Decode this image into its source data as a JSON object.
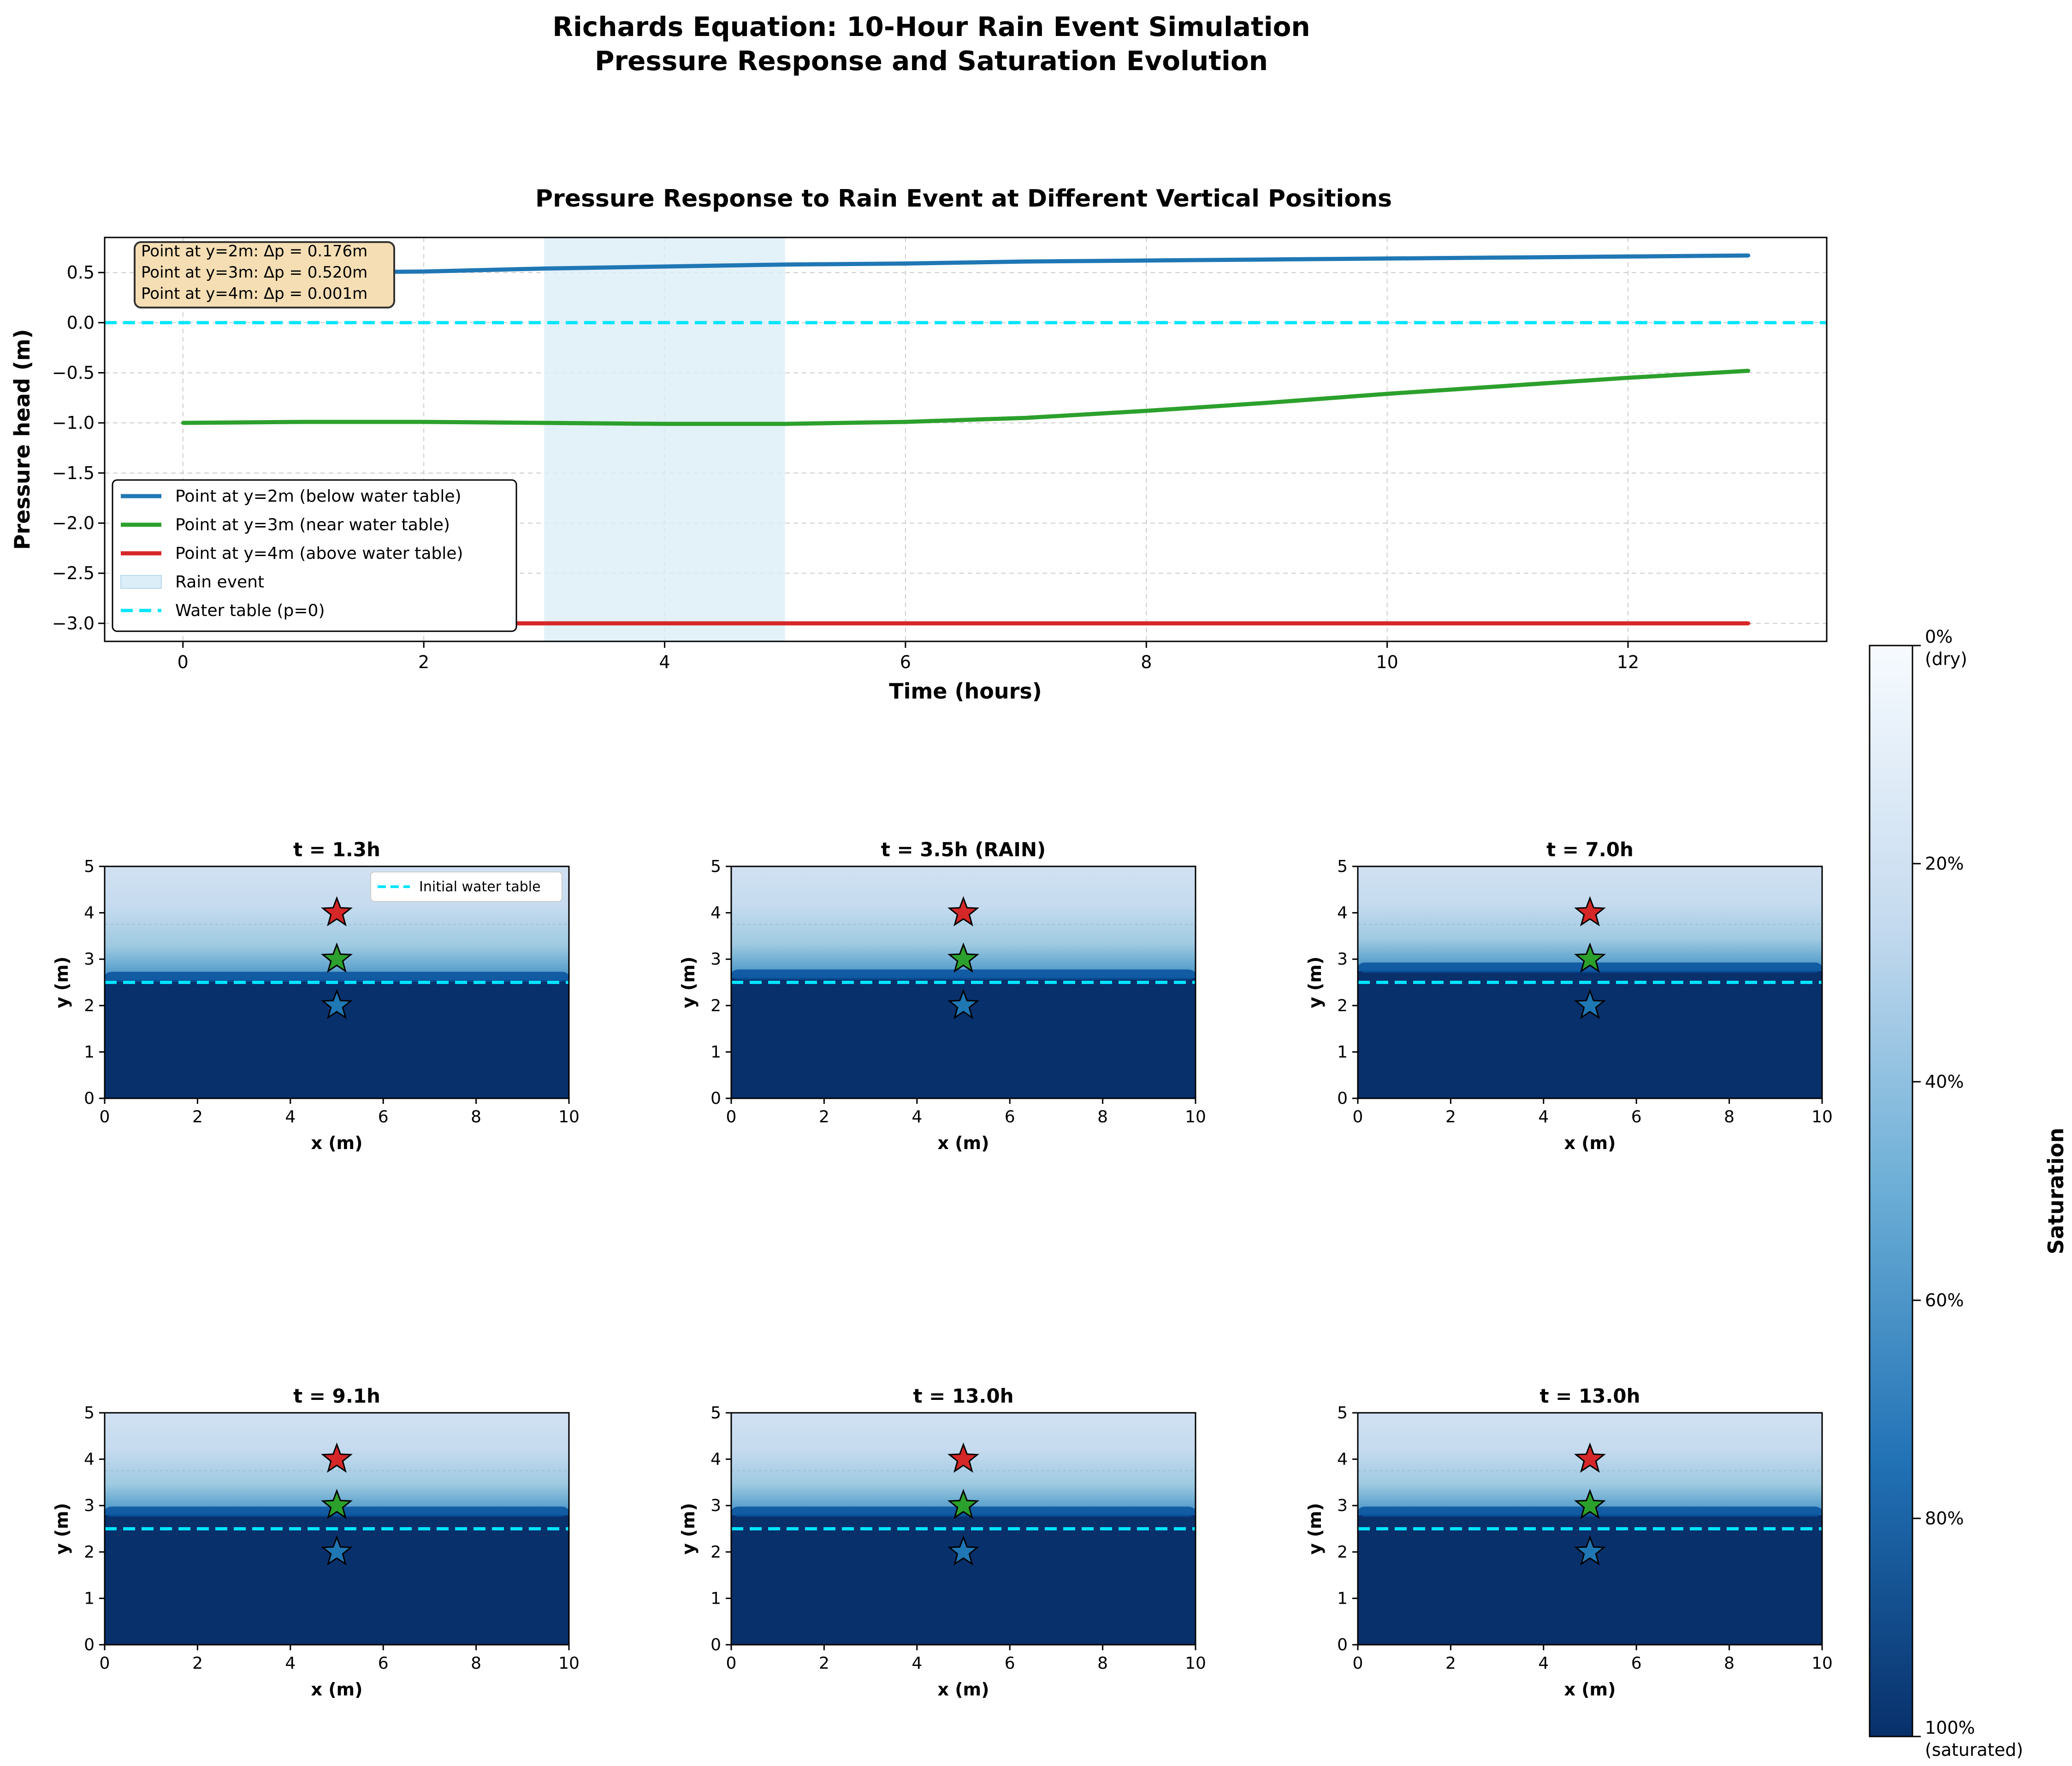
{
  "figure": {
    "suptitle_line1": "Richards Equation: 10-Hour Rain Event Simulation",
    "suptitle_line2": "Pressure Response and Saturation Evolution"
  },
  "pressure_panel": {
    "title": "Pressure Response to Rain Event at Different Vertical Positions",
    "xlabel": "Time (hours)",
    "ylabel": "Pressure head (m)",
    "xticks": [
      "0",
      "2",
      "4",
      "6",
      "8",
      "10",
      "12"
    ],
    "yticks": [
      "0.5",
      "0.0",
      "−0.5",
      "−1.0",
      "−1.5",
      "−2.0",
      "−2.5",
      "−3.0"
    ],
    "annotation": [
      "Point at y=2m: Δp = 0.176m",
      "Point at y=3m: Δp = 0.520m",
      "Point at y=4m: Δp = 0.001m"
    ],
    "legend": [
      "Point at y=2m (below water table)",
      "Point at y=3m (near water table)",
      "Point at y=4m (above water table)",
      "Rain event",
      "Water table (p=0)"
    ]
  },
  "colors": {
    "blue": "#1f77b4",
    "green": "#2ca02c",
    "red": "#d62728",
    "cyan": "#00e5ff",
    "rain": "#dceef8",
    "deep": "#08306b",
    "light": "#c6dbef",
    "annotation_bg": "#f5deb3"
  },
  "snapshots": {
    "titles": [
      "t = 1.3h",
      "t = 3.5h (RAIN)",
      "t = 7.0h",
      "t = 9.1h",
      "t = 13.0h",
      "t = 13.0h"
    ],
    "xlabel": "x (m)",
    "ylabel": "y (m)",
    "xticks": [
      "0",
      "2",
      "4",
      "6",
      "8",
      "10"
    ],
    "yticks": [
      "0",
      "1",
      "2",
      "3",
      "4",
      "5"
    ],
    "legend_label": "Initial water table"
  },
  "colorbar": {
    "label": "Saturation",
    "ticks": [
      "0%",
      "(dry)",
      "20%",
      "40%",
      "60%",
      "80%",
      "100%",
      "(saturated)"
    ]
  },
  "chart_data": [
    {
      "type": "line",
      "title": "Pressure Response to Rain Event at Different Vertical Positions",
      "xlabel": "Time (hours)",
      "ylabel": "Pressure head (m)",
      "xlim": [
        -0.65,
        13.65
      ],
      "ylim": [
        -3.18,
        0.85
      ],
      "grid": true,
      "legend_position": "lower-left",
      "shaded_region": {
        "label": "Rain event",
        "x": [
          3,
          5
        ]
      },
      "hline": {
        "label": "Water table (p=0)",
        "y": 0
      },
      "series": [
        {
          "name": "Point at y=2m (below water table)",
          "x": [
            0,
            1,
            2,
            3,
            4,
            5,
            6,
            7,
            8,
            9,
            10,
            11,
            12,
            13
          ],
          "y": [
            0.49,
            0.5,
            0.51,
            0.54,
            0.56,
            0.58,
            0.59,
            0.61,
            0.62,
            0.63,
            0.64,
            0.65,
            0.66,
            0.67
          ]
        },
        {
          "name": "Point at y=3m (near water table)",
          "x": [
            0,
            1,
            2,
            3,
            4,
            5,
            6,
            7,
            8,
            9,
            10,
            11,
            12,
            13
          ],
          "y": [
            -1.0,
            -0.99,
            -0.99,
            -1.0,
            -1.01,
            -1.01,
            -0.99,
            -0.95,
            -0.88,
            -0.8,
            -0.71,
            -0.63,
            -0.55,
            -0.48
          ]
        },
        {
          "name": "Point at y=4m (above water table)",
          "x": [
            0,
            1,
            2,
            3,
            4,
            5,
            6,
            7,
            8,
            9,
            10,
            11,
            12,
            13
          ],
          "y": [
            -3.0,
            -3.0,
            -3.0,
            -3.0,
            -3.0,
            -3.0,
            -3.0,
            -3.0,
            -3.0,
            -3.0,
            -3.0,
            -3.0,
            -3.0,
            -3.0
          ]
        }
      ]
    },
    {
      "type": "heatmap",
      "panels": [
        "t = 1.3h",
        "t = 3.5h (RAIN)",
        "t = 7.0h",
        "t = 9.1h",
        "t = 13.0h",
        "t = 13.0h"
      ],
      "xlim": [
        0,
        10
      ],
      "ylim": [
        0,
        5
      ],
      "water_table_y": 2.5,
      "wet_front_y": [
        2.55,
        2.6,
        2.75,
        2.8,
        2.8,
        2.8
      ],
      "saturation_above_front": 0.24,
      "saturation_below_front": 1.0,
      "markers": [
        {
          "x": 5,
          "y": 4,
          "color": "red"
        },
        {
          "x": 5,
          "y": 3,
          "color": "green"
        },
        {
          "x": 5,
          "y": 2,
          "color": "blue"
        }
      ],
      "colorbar_range": [
        0,
        1
      ]
    }
  ]
}
